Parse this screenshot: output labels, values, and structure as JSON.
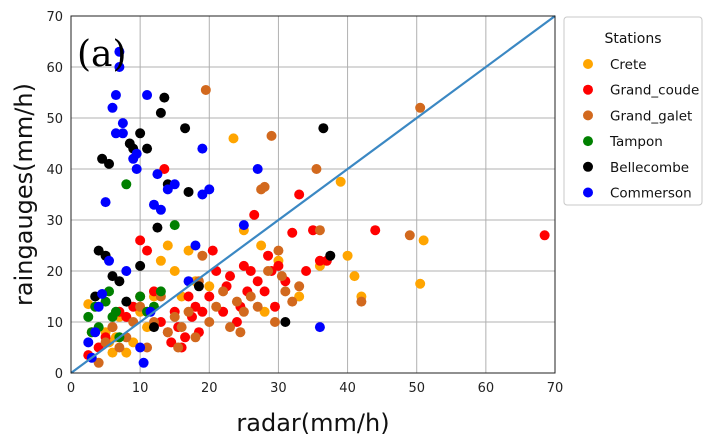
{
  "chart_data": {
    "type": "scatter",
    "panel_label": "(a)",
    "xlabel": "radar(mm/h)",
    "ylabel": "raingauges(mm/h)",
    "xlim": [
      0,
      70
    ],
    "ylim": [
      0,
      70
    ],
    "xticks": [
      "0",
      "10",
      "20",
      "30",
      "40",
      "50",
      "60",
      "70"
    ],
    "yticks": [
      "0",
      "10",
      "20",
      "30",
      "40",
      "50",
      "60",
      "70"
    ],
    "grid": true,
    "legend_title": "Stations",
    "legend_position": "outside-right-top",
    "reference_line": {
      "from": [
        0,
        0
      ],
      "to": [
        70,
        70
      ],
      "color": "#3b88c3"
    },
    "series": [
      {
        "name": "Crete",
        "color": "#ffa500",
        "points": [
          [
            2.5,
            13.5
          ],
          [
            3,
            8
          ],
          [
            4,
            5
          ],
          [
            5,
            8
          ],
          [
            5.5,
            6
          ],
          [
            6,
            4
          ],
          [
            6.5,
            7
          ],
          [
            7,
            11
          ],
          [
            8,
            4
          ],
          [
            9,
            6
          ],
          [
            10,
            12
          ],
          [
            11,
            9
          ],
          [
            12,
            15
          ],
          [
            13,
            22
          ],
          [
            14,
            25
          ],
          [
            15,
            20
          ],
          [
            16,
            15
          ],
          [
            17,
            24
          ],
          [
            18,
            18
          ],
          [
            20,
            17
          ],
          [
            23.5,
            46
          ],
          [
            25,
            28
          ],
          [
            27.5,
            25
          ],
          [
            28,
            12
          ],
          [
            30,
            22
          ],
          [
            33,
            15
          ],
          [
            36,
            21
          ],
          [
            39,
            37.5
          ],
          [
            40,
            23
          ],
          [
            41,
            19
          ],
          [
            42,
            15
          ],
          [
            50.5,
            17.5
          ],
          [
            51,
            26
          ]
        ]
      },
      {
        "name": "Grand_coude",
        "color": "#ff0000",
        "points": [
          [
            2.5,
            3.5
          ],
          [
            4,
            5
          ],
          [
            5,
            7
          ],
          [
            6,
            9
          ],
          [
            7,
            12
          ],
          [
            8,
            11
          ],
          [
            9,
            13
          ],
          [
            10,
            15
          ],
          [
            10,
            26
          ],
          [
            11,
            24
          ],
          [
            12,
            16
          ],
          [
            13,
            10
          ],
          [
            13.5,
            40
          ],
          [
            14,
            8
          ],
          [
            14.5,
            6
          ],
          [
            15,
            12
          ],
          [
            15.5,
            9
          ],
          [
            16,
            5
          ],
          [
            16.5,
            7
          ],
          [
            17,
            15
          ],
          [
            17.5,
            11
          ],
          [
            18,
            13
          ],
          [
            18.5,
            8
          ],
          [
            19,
            12
          ],
          [
            20,
            15
          ],
          [
            20.5,
            24
          ],
          [
            21,
            20
          ],
          [
            22,
            12
          ],
          [
            22.5,
            17
          ],
          [
            23,
            19
          ],
          [
            24,
            10
          ],
          [
            24.5,
            13
          ],
          [
            25,
            21
          ],
          [
            25.5,
            16
          ],
          [
            26,
            20
          ],
          [
            26.5,
            31
          ],
          [
            27,
            18
          ],
          [
            28,
            16
          ],
          [
            28.5,
            23
          ],
          [
            29,
            20
          ],
          [
            29.5,
            13
          ],
          [
            30,
            21
          ],
          [
            31,
            18
          ],
          [
            32,
            27.5
          ],
          [
            33,
            35
          ],
          [
            34,
            20
          ],
          [
            35,
            28
          ],
          [
            36,
            22
          ],
          [
            37,
            22
          ],
          [
            44,
            28
          ],
          [
            68.5,
            27
          ]
        ]
      },
      {
        "name": "Grand_galet",
        "color": "#d2691e",
        "points": [
          [
            4,
            2
          ],
          [
            5,
            6
          ],
          [
            6,
            9
          ],
          [
            7,
            5
          ],
          [
            8,
            7
          ],
          [
            9,
            10
          ],
          [
            10,
            13
          ],
          [
            11,
            5
          ],
          [
            12,
            10
          ],
          [
            13,
            15
          ],
          [
            14,
            8
          ],
          [
            15,
            11
          ],
          [
            15.5,
            5
          ],
          [
            16,
            9
          ],
          [
            17,
            12
          ],
          [
            18,
            7
          ],
          [
            18.5,
            18
          ],
          [
            19,
            23
          ],
          [
            19.5,
            55.5
          ],
          [
            20,
            10
          ],
          [
            21,
            13
          ],
          [
            22,
            16
          ],
          [
            23,
            9
          ],
          [
            24,
            14
          ],
          [
            24.5,
            8
          ],
          [
            25,
            12
          ],
          [
            26,
            15
          ],
          [
            27,
            13
          ],
          [
            27.5,
            36
          ],
          [
            28,
            36.5
          ],
          [
            28.5,
            20
          ],
          [
            29,
            46.5
          ],
          [
            29.5,
            10
          ],
          [
            30,
            24
          ],
          [
            30.5,
            19
          ],
          [
            31,
            16
          ],
          [
            32,
            14
          ],
          [
            33,
            17
          ],
          [
            35.5,
            40
          ],
          [
            36,
            28
          ],
          [
            42,
            14
          ],
          [
            49,
            27
          ],
          [
            50.5,
            52
          ]
        ]
      },
      {
        "name": "Tampon",
        "color": "#008000",
        "points": [
          [
            2.5,
            11
          ],
          [
            3,
            8
          ],
          [
            3.5,
            13
          ],
          [
            4,
            9
          ],
          [
            5,
            14
          ],
          [
            5.5,
            16
          ],
          [
            6,
            11
          ],
          [
            6.5,
            12
          ],
          [
            7,
            7
          ],
          [
            8,
            37
          ],
          [
            10,
            15
          ],
          [
            11,
            12
          ],
          [
            12,
            13
          ],
          [
            13,
            16
          ],
          [
            15,
            29
          ]
        ]
      },
      {
        "name": "Bellecombe",
        "color": "#000000",
        "points": [
          [
            3.5,
            15
          ],
          [
            4,
            24
          ],
          [
            4.5,
            42
          ],
          [
            5,
            23
          ],
          [
            5.5,
            41
          ],
          [
            6,
            19
          ],
          [
            7,
            18
          ],
          [
            8,
            14
          ],
          [
            8.5,
            45
          ],
          [
            9,
            44
          ],
          [
            10,
            47
          ],
          [
            10,
            21
          ],
          [
            11,
            44
          ],
          [
            12,
            9
          ],
          [
            12.5,
            28.5
          ],
          [
            13,
            51
          ],
          [
            13.5,
            54
          ],
          [
            14,
            37
          ],
          [
            16.5,
            48
          ],
          [
            17,
            35.5
          ],
          [
            18.5,
            17
          ],
          [
            31,
            10
          ],
          [
            36.5,
            48
          ],
          [
            37.5,
            23
          ]
        ]
      },
      {
        "name": "Commerson",
        "color": "#0000ff",
        "points": [
          [
            2.5,
            6
          ],
          [
            3,
            3
          ],
          [
            3.5,
            8
          ],
          [
            4,
            13
          ],
          [
            4.5,
            15.5
          ],
          [
            5,
            33.5
          ],
          [
            5.5,
            22
          ],
          [
            6,
            52
          ],
          [
            6.5,
            47
          ],
          [
            6.5,
            54.5
          ],
          [
            7,
            63
          ],
          [
            7,
            60
          ],
          [
            7.5,
            49
          ],
          [
            7.5,
            47
          ],
          [
            8,
            20
          ],
          [
            9,
            42
          ],
          [
            9.5,
            40
          ],
          [
            9.5,
            43
          ],
          [
            10,
            5
          ],
          [
            10.5,
            2
          ],
          [
            11,
            54.5
          ],
          [
            11.5,
            12
          ],
          [
            12,
            33
          ],
          [
            12.5,
            39
          ],
          [
            13,
            32
          ],
          [
            14,
            36
          ],
          [
            15,
            37
          ],
          [
            17,
            18
          ],
          [
            18,
            25
          ],
          [
            19,
            35
          ],
          [
            19,
            44
          ],
          [
            20,
            36
          ],
          [
            25,
            29
          ],
          [
            27,
            40
          ],
          [
            36,
            9
          ]
        ]
      }
    ]
  }
}
